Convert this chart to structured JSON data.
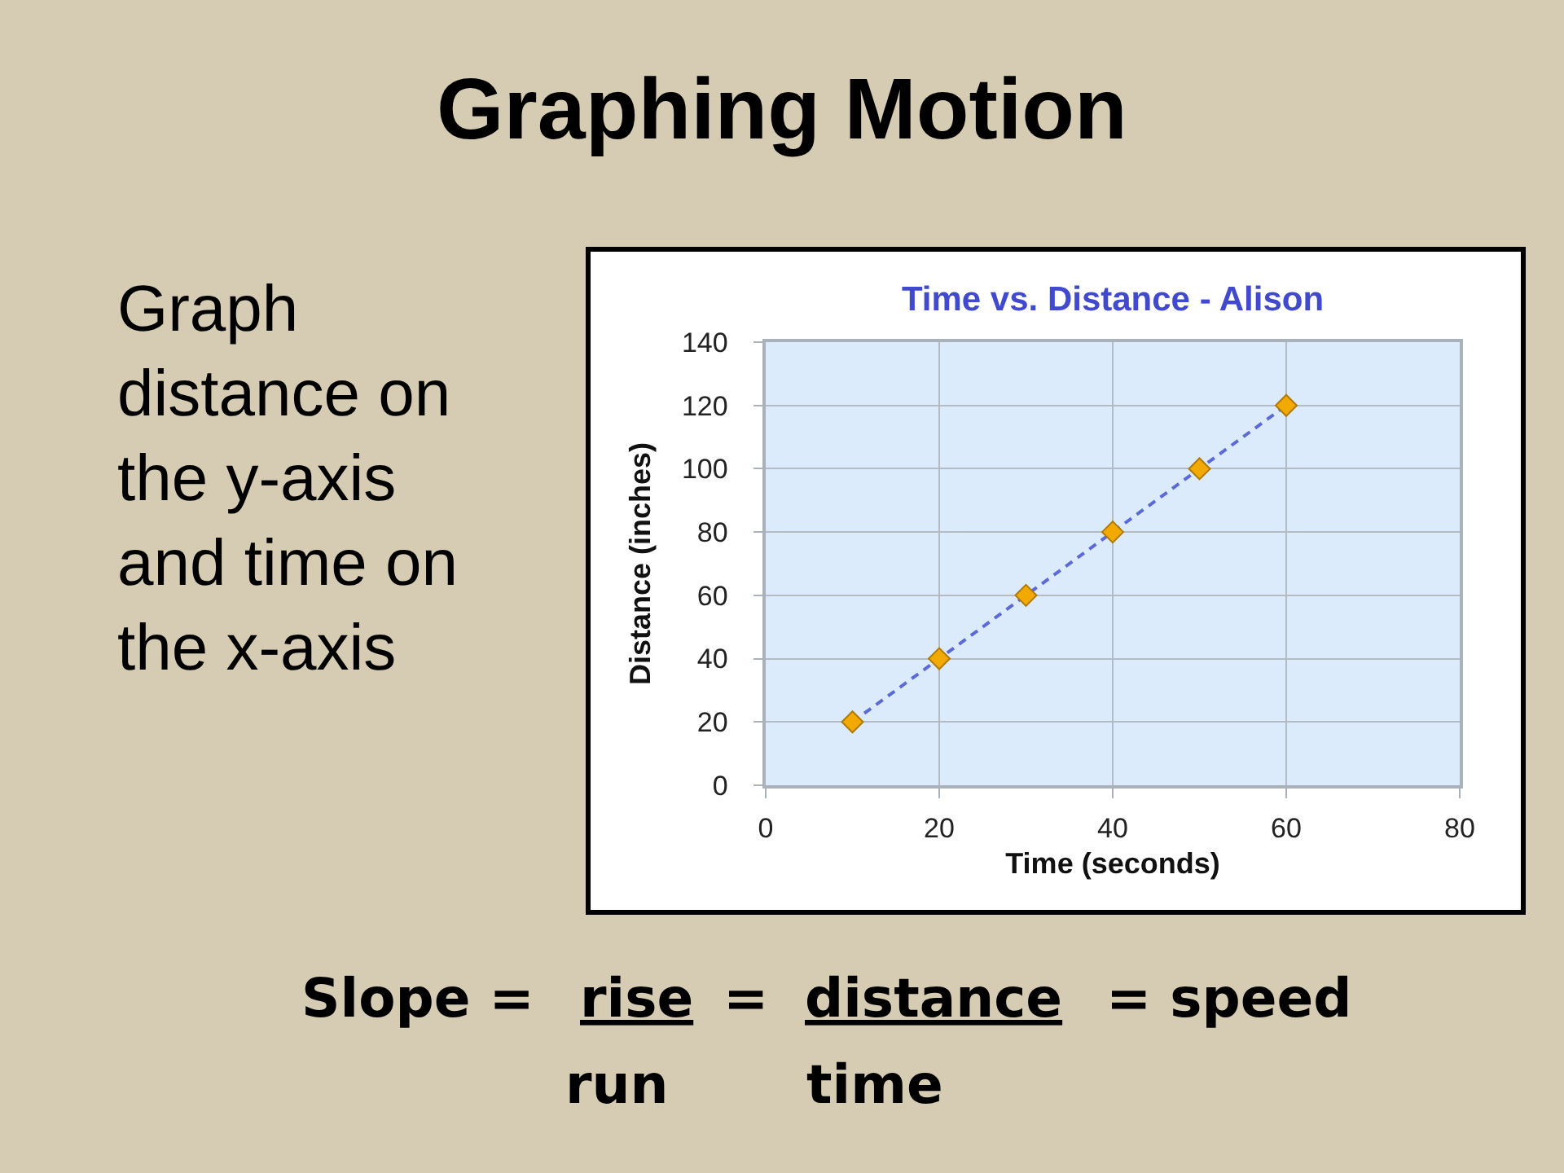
{
  "chart_data": {
    "type": "line",
    "title": "Time vs. Distance - Alison",
    "xlabel": "Time (seconds)",
    "ylabel": "Distance (inches)",
    "x": [
      10,
      20,
      30,
      40,
      50,
      60
    ],
    "series": [
      {
        "color": "#5b6ad6",
        "colors": [
          "#f2a900",
          "#f2a900",
          "#f2a900",
          "#f2a900",
          "#f2a900",
          "#f2a900"
        ],
        "values": [
          20,
          40,
          60,
          80,
          100,
          120
        ]
      }
    ],
    "xlim": [
      0,
      80
    ],
    "xticks": [
      0,
      20,
      40,
      60,
      80
    ],
    "ylim": [
      0,
      140
    ],
    "yticks": [
      0,
      20,
      40,
      60,
      80,
      100,
      120,
      140
    ],
    "grid": true,
    "marker": "diamond",
    "line_style": "dashed",
    "annotations": [
      "Graphing Motion",
      "Graph distance on the y-axis and time on the x-axis",
      "Slope =",
      "rise",
      "=",
      "distance",
      "= speed",
      "run",
      "time"
    ]
  }
}
